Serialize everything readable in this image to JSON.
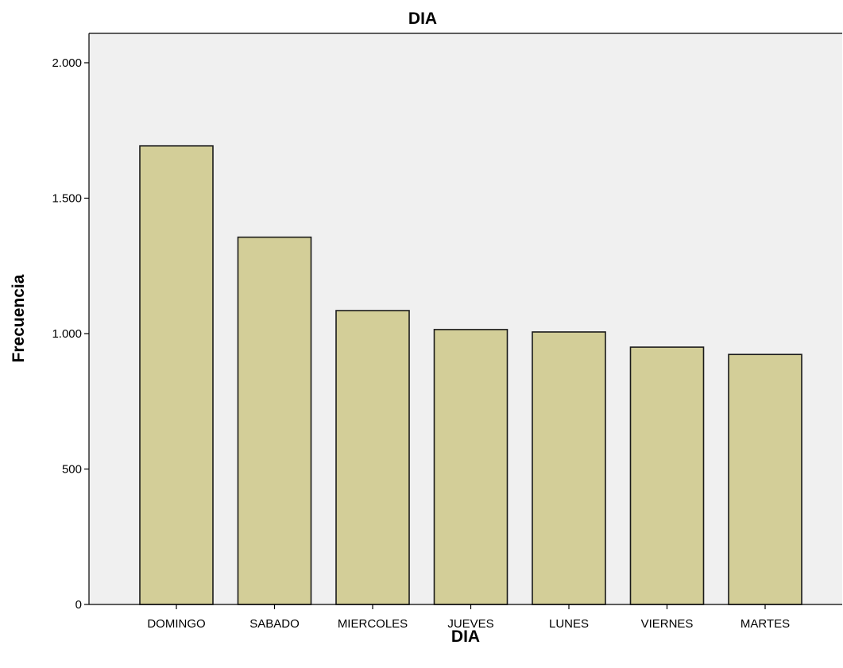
{
  "chart_data": {
    "type": "bar",
    "title": "DIA",
    "xlabel": "DIA",
    "ylabel": "Frecuencia",
    "categories": [
      "DOMINGO",
      "SABADO",
      "MIERCOLES",
      "JUEVES",
      "LUNES",
      "VIERNES",
      "MARTES"
    ],
    "values": [
      1693,
      1356,
      1085,
      1015,
      1006,
      950,
      923
    ],
    "ylim": [
      0,
      2000
    ],
    "yticks": [
      0,
      500,
      1000,
      1500,
      2000
    ],
    "ytick_labels": [
      "0",
      "500",
      "1.000",
      "1.500",
      "2.000"
    ],
    "grid": false,
    "legend": "none",
    "colors": {
      "bar_fill": "#d3ce98",
      "bar_stroke": "#1a1a1a",
      "plot_background": "#f0f0f0",
      "axis": "#000000"
    }
  }
}
